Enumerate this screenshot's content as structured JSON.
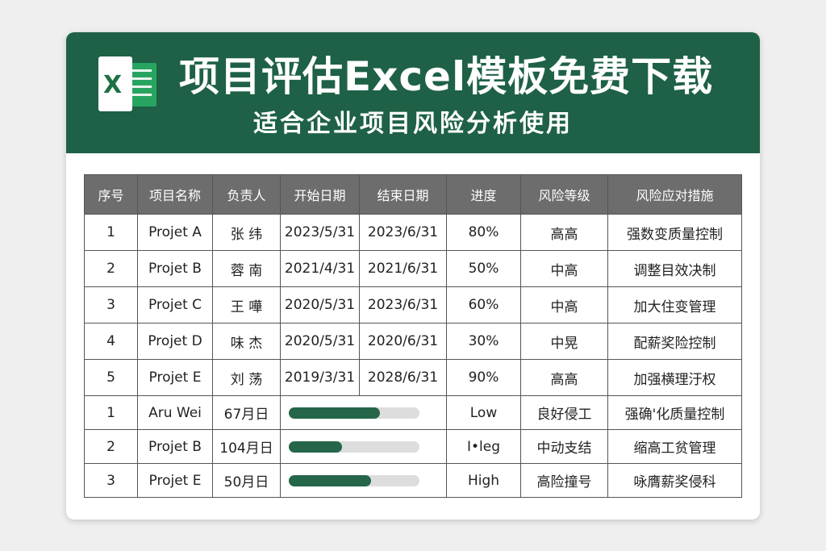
{
  "banner": {
    "title": "项目评估Excel模板免费下载",
    "subtitle": "适合企业项目风险分析使用",
    "logo_icon": "excel-logo-icon",
    "logo_letter": "X",
    "background": "#1e6146"
  },
  "table": {
    "headers": [
      "序号",
      "项目名称",
      "负责人",
      "开始日期",
      "结束日期",
      "进度",
      "风险等级",
      "风险应对措施"
    ],
    "rows": [
      {
        "no": "1",
        "project": "Projet A",
        "owner": "张 纬",
        "start": "2023/5/31",
        "end": "2023/6/31",
        "progress": "80%",
        "risk": "高高",
        "measure": "强数变质量控制"
      },
      {
        "no": "2",
        "project": "Projet B",
        "owner": "蓉 南",
        "start": "2021/4/31",
        "end": "2021/6/31",
        "progress": "50%",
        "risk": "中高",
        "measure": "调整目效决制"
      },
      {
        "no": "3",
        "project": "Projet C",
        "owner": "王 嘩",
        "start": "2020/5/31",
        "end": "2023/6/31",
        "progress": "60%",
        "risk": "中高",
        "measure": "加大住变管理"
      },
      {
        "no": "4",
        "project": "Projet D",
        "owner": "味 杰",
        "start": "2020/5/31",
        "end": "2020/6/31",
        "progress": "30%",
        "risk": "中晃",
        "measure": "配薪奖险控制"
      },
      {
        "no": "5",
        "project": "Projet E",
        "owner": "刘 荡",
        "start": "2019/3/31",
        "end": "2028/6/31",
        "progress": "90%",
        "risk": "高高",
        "measure": "加强横理汙权"
      }
    ],
    "bar_rows": [
      {
        "no": "1",
        "project": "Aru Wei",
        "owner": "67月日",
        "progress": 0.7,
        "level": "Low",
        "risk": "良好侵工",
        "measure": "强确'化质量控制"
      },
      {
        "no": "2",
        "project": "Projet B",
        "owner": "104月日",
        "progress": 0.41,
        "level": "I•leg",
        "risk": "中动支结",
        "measure": "缩高工贫管理"
      },
      {
        "no": "3",
        "project": "Projet E",
        "owner": "50月日",
        "progress": 0.63,
        "level": "High",
        "risk": "高险撞号",
        "measure": "咏膺薪奖侵科"
      }
    ]
  }
}
